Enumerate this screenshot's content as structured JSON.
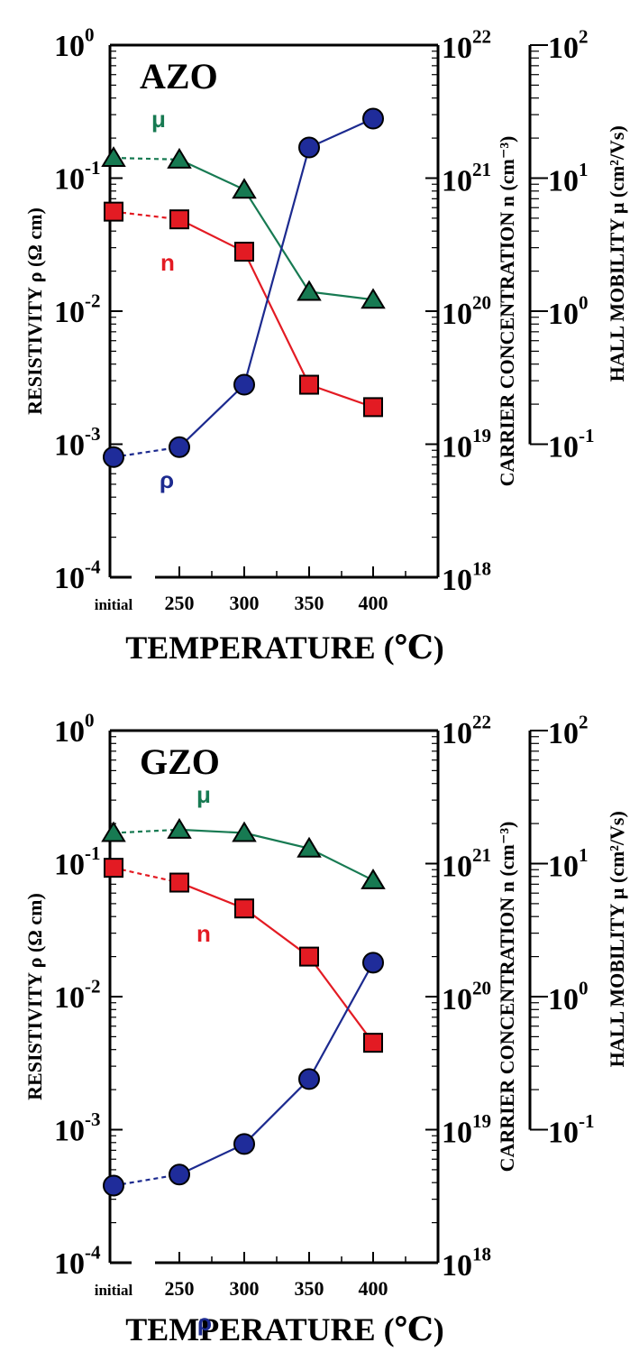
{
  "chart_data": [
    {
      "type": "line",
      "panel_label": "AZO",
      "categories": [
        "initial",
        "250",
        "300",
        "350",
        "400"
      ],
      "xlabel": "TEMPERATURE (℃)",
      "ylabel_left": "RESISTIVITY ρ   (Ω cm)",
      "ylabel_mid": "CARRIER CONCENTRATION  n   (cm⁻³)",
      "ylabel_right": "HALL MOBILITY μ (cm²/Vs)",
      "y_left": {
        "scale": "log",
        "range": [
          0.0001,
          1
        ],
        "ticks": [
          [
            "10",
            "-4"
          ],
          [
            "10",
            "-3"
          ],
          [
            "10",
            "-2"
          ],
          [
            "10",
            "-1"
          ],
          [
            "10",
            "0"
          ]
        ]
      },
      "y_mid": {
        "scale": "log",
        "range": [
          1e+18,
          1e+22
        ],
        "ticks": [
          [
            "10",
            "18"
          ],
          [
            "10",
            "19"
          ],
          [
            "10",
            "20"
          ],
          [
            "10",
            "21"
          ],
          [
            "10",
            "22"
          ]
        ]
      },
      "y_right": {
        "scale": "log",
        "range": [
          0.1,
          100
        ],
        "ticks": [
          [
            "10",
            "-1"
          ],
          [
            "10",
            "0"
          ],
          [
            "10",
            "1"
          ],
          [
            "10",
            "2"
          ]
        ]
      },
      "series": [
        {
          "name": "μ",
          "axis": "right",
          "color": "#177a52",
          "marker": "triangle",
          "values": [
            14.2,
            13.8,
            8.2,
            1.4,
            1.22
          ]
        },
        {
          "name": "n",
          "axis": "mid",
          "color": "#e31b23",
          "marker": "square",
          "values": [
            5.6e+20,
            4.9e+20,
            2.8e+20,
            2.8e+19,
            1.9e+19
          ]
        },
        {
          "name": "ρ",
          "axis": "left",
          "color": "#1c2a8f",
          "marker": "circle",
          "values": [
            0.0008,
            0.00095,
            0.0028,
            0.17,
            0.28
          ]
        }
      ]
    },
    {
      "type": "line",
      "panel_label": "GZO",
      "categories": [
        "initial",
        "250",
        "300",
        "350",
        "400"
      ],
      "xlabel": "TEMPERATURE (℃)",
      "ylabel_left": "RESISTIVITY ρ   (Ω cm)",
      "ylabel_mid": "CARRIER CONCENTRATION  n   (cm⁻³)",
      "ylabel_right": "HALL MOBILITY μ (cm²/Vs)",
      "y_left": {
        "scale": "log",
        "range": [
          0.0001,
          1
        ],
        "ticks": [
          [
            "10",
            "-4"
          ],
          [
            "10",
            "-3"
          ],
          [
            "10",
            "-2"
          ],
          [
            "10",
            "-1"
          ],
          [
            "10",
            "0"
          ]
        ]
      },
      "y_mid": {
        "scale": "log",
        "range": [
          1e+18,
          1e+22
        ],
        "ticks": [
          [
            "10",
            "18"
          ],
          [
            "10",
            "19"
          ],
          [
            "10",
            "20"
          ],
          [
            "10",
            "21"
          ],
          [
            "10",
            "22"
          ]
        ]
      },
      "y_right": {
        "scale": "log",
        "range": [
          0.1,
          100
        ],
        "ticks": [
          [
            "10",
            "-1"
          ],
          [
            "10",
            "0"
          ],
          [
            "10",
            "1"
          ],
          [
            "10",
            "2"
          ]
        ]
      },
      "series": [
        {
          "name": "μ",
          "axis": "right",
          "color": "#177a52",
          "marker": "triangle",
          "values": [
            17.0,
            18.0,
            17.0,
            13.0,
            7.5
          ]
        },
        {
          "name": "n",
          "axis": "mid",
          "color": "#e31b23",
          "marker": "square",
          "values": [
            9.3e+20,
            7.2e+20,
            4.6e+20,
            2e+20,
            4.5e+19
          ]
        },
        {
          "name": "ρ",
          "axis": "left",
          "color": "#1c2a8f",
          "marker": "circle",
          "values": [
            0.00038,
            0.00046,
            0.00078,
            0.0024,
            0.018
          ]
        }
      ]
    }
  ]
}
